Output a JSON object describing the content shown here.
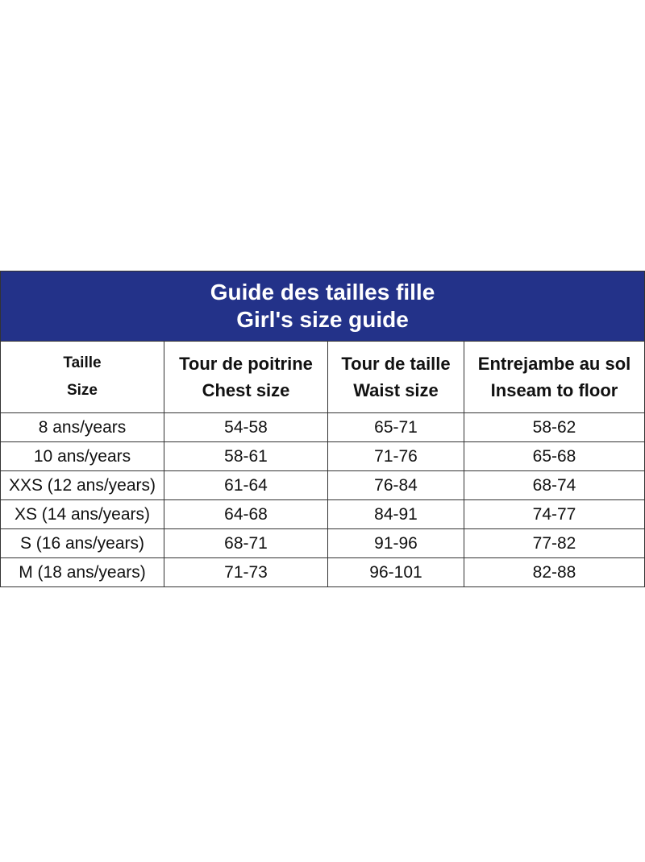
{
  "title": {
    "line1": "Guide des tailles fille",
    "line2": "Girl's size guide"
  },
  "colors": {
    "header_bg": "#233289",
    "header_text": "#ffffff",
    "border": "#333333"
  },
  "columns": [
    {
      "line1": "Taille",
      "line2": "Size"
    },
    {
      "line1": "Tour de poitrine",
      "line2": "Chest size"
    },
    {
      "line1": "Tour de taille",
      "line2": "Waist size"
    },
    {
      "line1": "Entrejambe au sol",
      "line2": "Inseam to floor"
    }
  ],
  "rows": [
    [
      "8 ans/years",
      "54-58",
      "65-71",
      "58-62"
    ],
    [
      "10 ans/years",
      "58-61",
      "71-76",
      "65-68"
    ],
    [
      "XXS (12 ans/years)",
      "61-64",
      "76-84",
      "68-74"
    ],
    [
      "XS (14 ans/years)",
      "64-68",
      "84-91",
      "74-77"
    ],
    [
      "S (16 ans/years)",
      "68-71",
      "91-96",
      "77-82"
    ],
    [
      "M (18 ans/years)",
      "71-73",
      "96-101",
      "82-88"
    ]
  ]
}
